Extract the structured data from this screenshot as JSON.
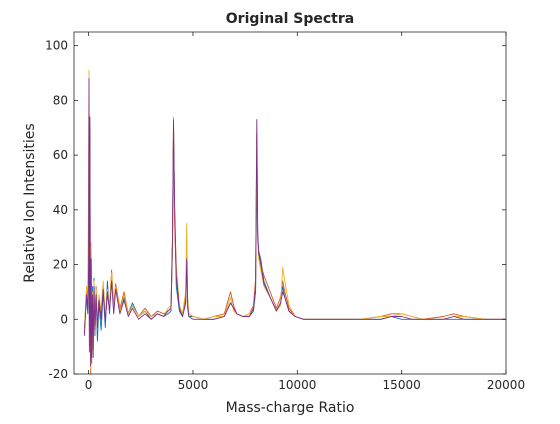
{
  "chart_data": {
    "type": "line",
    "title": "Original Spectra",
    "xlabel": "Mass-charge Ratio",
    "ylabel": "Relative Ion Intensities",
    "xlim": [
      -700,
      20000
    ],
    "ylim": [
      -20,
      105
    ],
    "xticks": [
      0,
      5000,
      10000,
      15000,
      20000
    ],
    "xtick_labels": [
      "0",
      "5000",
      "10000",
      "15000",
      "20000"
    ],
    "yticks": [
      -20,
      0,
      20,
      40,
      60,
      80,
      100
    ],
    "ytick_labels": [
      "-20",
      "0",
      "20",
      "40",
      "60",
      "80",
      "100"
    ],
    "grid": false,
    "box": true,
    "series": [
      {
        "color": "#0072bd",
        "x": [
          -200,
          -100,
          -40,
          0,
          20,
          40,
          60,
          80,
          100,
          120,
          150,
          180,
          220,
          260,
          300,
          360,
          420,
          500,
          600,
          700,
          800,
          900,
          1000,
          1100,
          1200,
          1300,
          1500,
          1700,
          1900,
          2100,
          2400,
          2700,
          3000,
          3300,
          3600,
          3800,
          3950,
          4020,
          4070,
          4120,
          4200,
          4350,
          4500,
          4650,
          4700,
          4750,
          4800,
          5000,
          5500,
          6000,
          6500,
          6800,
          6950,
          7100,
          7400,
          7700,
          7900,
          8000,
          8060,
          8100,
          8150,
          8250,
          8400,
          8700,
          9000,
          9200,
          9300,
          9400,
          9600,
          9900,
          10300,
          11000,
          12000,
          13000,
          14000,
          14500,
          15000,
          15500,
          16000,
          17000,
          17500,
          18000,
          19000,
          20000
        ],
        "y": [
          -3,
          8,
          2,
          15,
          42,
          -5,
          70,
          8,
          -15,
          25,
          -10,
          12,
          -14,
          15,
          -6,
          10,
          -8,
          6,
          -4,
          10,
          -3,
          14,
          2,
          16,
          3,
          12,
          3,
          8,
          2,
          6,
          1,
          3,
          0,
          2,
          1,
          2,
          3,
          30,
          70,
          40,
          12,
          3,
          1,
          6,
          25,
          4,
          1,
          1,
          0,
          0,
          1,
          6,
          4,
          2,
          1,
          1,
          3,
          10,
          55,
          30,
          25,
          22,
          14,
          8,
          3,
          6,
          12,
          8,
          3,
          1,
          0,
          0,
          0,
          0,
          0,
          1,
          0,
          0,
          0,
          0,
          0,
          0,
          0,
          0
        ]
      },
      {
        "color": "#d95319",
        "x": [
          -200,
          -100,
          -40,
          0,
          20,
          40,
          60,
          80,
          100,
          120,
          150,
          180,
          220,
          260,
          300,
          360,
          420,
          500,
          600,
          700,
          800,
          900,
          1000,
          1100,
          1200,
          1300,
          1500,
          1700,
          1900,
          2100,
          2400,
          2700,
          3000,
          3300,
          3600,
          3800,
          3950,
          4020,
          4070,
          4120,
          4200,
          4350,
          4500,
          4650,
          4700,
          4750,
          4800,
          5000,
          5500,
          6000,
          6500,
          6800,
          6950,
          7100,
          7400,
          7700,
          7900,
          8000,
          8060,
          8100,
          8150,
          8250,
          8400,
          8700,
          9000,
          9200,
          9300,
          9400,
          9600,
          9900,
          10300,
          11000,
          12000,
          13000,
          14000,
          14500,
          15000,
          15500,
          16000,
          17000,
          17500,
          18000,
          19000,
          20000
        ],
        "y": [
          -5,
          10,
          5,
          30,
          80,
          -10,
          45,
          15,
          -20,
          20,
          -16,
          8,
          -12,
          10,
          -5,
          12,
          -4,
          8,
          2,
          12,
          0,
          9,
          4,
          18,
          5,
          13,
          4,
          10,
          2,
          5,
          1,
          4,
          1,
          3,
          2,
          3,
          4,
          25,
          68,
          35,
          15,
          5,
          2,
          8,
          20,
          6,
          2,
          1,
          0,
          1,
          2,
          10,
          5,
          2,
          1,
          2,
          5,
          15,
          68,
          28,
          25,
          20,
          16,
          10,
          4,
          8,
          14,
          10,
          4,
          1,
          0,
          0,
          0,
          0,
          1,
          2,
          2,
          1,
          0,
          1,
          2,
          1,
          0,
          0
        ]
      },
      {
        "color": "#edb120",
        "x": [
          -200,
          -100,
          -40,
          0,
          20,
          40,
          60,
          80,
          100,
          120,
          150,
          180,
          220,
          260,
          300,
          360,
          420,
          500,
          600,
          700,
          800,
          900,
          1000,
          1100,
          1200,
          1300,
          1500,
          1700,
          1900,
          2100,
          2400,
          2700,
          3000,
          3300,
          3600,
          3800,
          3950,
          4020,
          4070,
          4120,
          4200,
          4350,
          4500,
          4650,
          4700,
          4750,
          4800,
          5000,
          5500,
          6000,
          6500,
          6800,
          6950,
          7100,
          7400,
          7700,
          7900,
          8000,
          8060,
          8100,
          8150,
          8250,
          8400,
          8700,
          9000,
          9200,
          9300,
          9400,
          9600,
          9900,
          10300,
          11000,
          12000,
          13000,
          14000,
          14500,
          15000,
          15500,
          16000,
          17000,
          17500,
          18000,
          19000,
          20000
        ],
        "y": [
          -4,
          12,
          6,
          50,
          91,
          -8,
          60,
          10,
          -18,
          28,
          -12,
          10,
          -10,
          14,
          -3,
          11,
          -2,
          9,
          3,
          14,
          1,
          11,
          5,
          17,
          4,
          12,
          3,
          9,
          2,
          5,
          1,
          3,
          1,
          2,
          1,
          4,
          5,
          28,
          74,
          38,
          20,
          5,
          2,
          10,
          35,
          8,
          2,
          1,
          0,
          1,
          1,
          8,
          3,
          2,
          1,
          2,
          4,
          12,
          65,
          30,
          22,
          18,
          12,
          8,
          3,
          5,
          19,
          14,
          5,
          1,
          0,
          0,
          0,
          0,
          1,
          1,
          2,
          1,
          0,
          0,
          1,
          1,
          0,
          0
        ]
      },
      {
        "color": "#7e2f8e",
        "x": [
          -200,
          -100,
          -40,
          0,
          20,
          40,
          60,
          80,
          100,
          120,
          150,
          180,
          220,
          260,
          300,
          360,
          420,
          500,
          600,
          700,
          800,
          900,
          1000,
          1100,
          1200,
          1300,
          1500,
          1700,
          1900,
          2100,
          2400,
          2700,
          3000,
          3300,
          3600,
          3800,
          3950,
          4020,
          4070,
          4120,
          4200,
          4350,
          4500,
          4650,
          4700,
          4750,
          4800,
          5000,
          5500,
          6000,
          6500,
          6800,
          6950,
          7100,
          7400,
          7700,
          7900,
          8000,
          8060,
          8100,
          8150,
          8250,
          8400,
          8700,
          9000,
          9200,
          9300,
          9400,
          9600,
          9900,
          10300,
          11000,
          12000,
          13000,
          14000,
          14500,
          15000,
          15500,
          16000,
          17000,
          17500,
          18000,
          19000,
          20000
        ],
        "y": [
          -6,
          9,
          4,
          20,
          88,
          -12,
          74,
          5,
          -17,
          22,
          -14,
          9,
          -11,
          12,
          -4,
          9,
          -3,
          7,
          0,
          11,
          -1,
          10,
          3,
          14,
          2,
          11,
          2,
          7,
          1,
          4,
          0,
          2,
          0,
          2,
          1,
          3,
          4,
          30,
          73,
          42,
          16,
          4,
          1,
          6,
          22,
          5,
          1,
          0,
          0,
          0,
          1,
          6,
          4,
          2,
          1,
          1,
          4,
          12,
          73,
          32,
          24,
          20,
          13,
          8,
          3,
          6,
          10,
          8,
          3,
          1,
          0,
          0,
          0,
          0,
          0,
          1,
          1,
          0,
          0,
          0,
          1,
          0,
          0,
          0
        ]
      }
    ]
  }
}
